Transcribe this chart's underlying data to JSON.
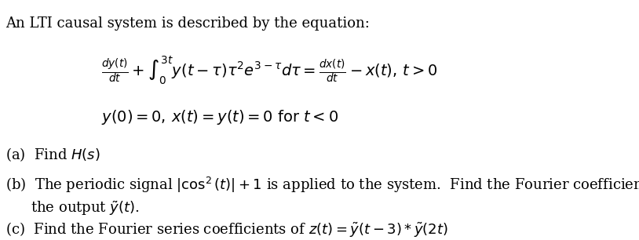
{
  "background_color": "#ffffff",
  "intro_text": "An LTI causal system is described by the equation:",
  "equation_line1_left": "$\\frac{dy(t)}{dt} + \\int_0^{3t} y(t-\\tau)\\tau^2 e^{3-\\tau}d\\tau = \\frac{dx(t)}{dt} - x(t), t > 0$",
  "equation_line2": "$y(0) = 0, x(t) = y(t) = 0 \\text{ for } t < 0$",
  "part_a": "(a)  Find $H(s)$",
  "part_b1": "(b)  The periodic signal $|\\cos^2(t)| + 1$ is applied to the system.  Find the Fourier coefficients of",
  "part_b2": "      the output $\\tilde{y}(t)$.",
  "part_c": "(c)  Find the Fourier series coefficients of $z(t) = \\tilde{y}(t-3) * \\tilde{y}(2t)$",
  "font_size_intro": 13,
  "font_size_eq": 13,
  "font_size_parts": 13,
  "text_color": "#000000"
}
